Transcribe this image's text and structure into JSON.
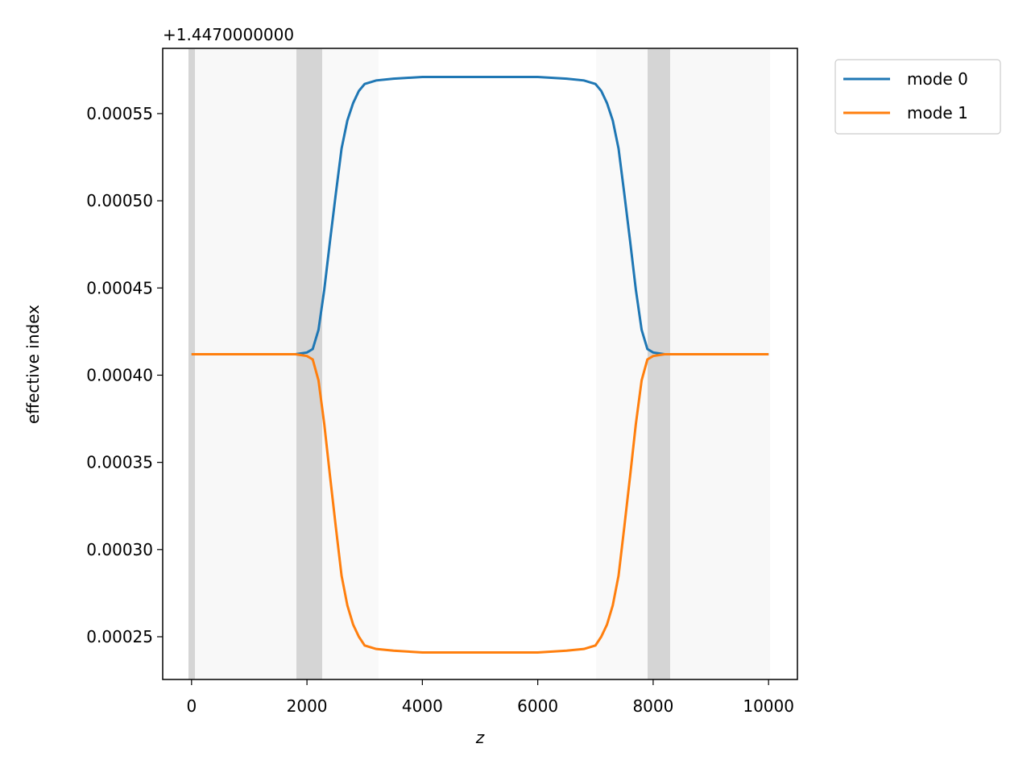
{
  "chart_data": {
    "type": "line",
    "xlabel": "z",
    "ylabel": "effective index",
    "offset_text": "+1.4470000000",
    "x": [
      0,
      500,
      1000,
      1500,
      1800,
      2000,
      2100,
      2200,
      2300,
      2400,
      2500,
      2600,
      2700,
      2800,
      2900,
      3000,
      3200,
      3500,
      4000,
      5000,
      6000,
      6500,
      6800,
      7000,
      7100,
      7200,
      7300,
      7400,
      7500,
      7600,
      7700,
      7800,
      7900,
      8000,
      8200,
      8500,
      9000,
      9500,
      10000
    ],
    "series": [
      {
        "name": "mode 0",
        "color": "#1f77b4",
        "values": [
          0.000412,
          0.000412,
          0.000412,
          0.000412,
          0.000412,
          0.000413,
          0.000415,
          0.000426,
          0.000449,
          0.000477,
          0.000504,
          0.00053,
          0.000546,
          0.000556,
          0.000563,
          0.000567,
          0.000569,
          0.00057,
          0.000571,
          0.000571,
          0.000571,
          0.00057,
          0.000569,
          0.000567,
          0.000563,
          0.000556,
          0.000546,
          0.00053,
          0.000504,
          0.000477,
          0.000449,
          0.000426,
          0.000415,
          0.000413,
          0.000412,
          0.000412,
          0.000412,
          0.000412,
          0.000412
        ]
      },
      {
        "name": "mode 1",
        "color": "#ff7f0e",
        "values": [
          0.000412,
          0.000412,
          0.000412,
          0.000412,
          0.000412,
          0.000411,
          0.000409,
          0.000397,
          0.000372,
          0.000342,
          0.000313,
          0.000285,
          0.000268,
          0.000257,
          0.00025,
          0.000245,
          0.000243,
          0.000242,
          0.000241,
          0.000241,
          0.000241,
          0.000242,
          0.000243,
          0.000245,
          0.00025,
          0.000257,
          0.000268,
          0.000285,
          0.000313,
          0.000342,
          0.000372,
          0.000397,
          0.000409,
          0.000411,
          0.000412,
          0.000412,
          0.000412,
          0.000412,
          0.000412
        ]
      }
    ],
    "xlim": [
      -500,
      10500
    ],
    "xticks": [
      0,
      2000,
      4000,
      6000,
      8000,
      10000
    ],
    "ylim": [
      0.0002255,
      0.0005874
    ],
    "yticks": [
      0.00025,
      {
        "value": 0.0003,
        "label": "0.00030"
      },
      0.00035,
      {
        "value": 0.0004,
        "label": "0.00040"
      },
      0.00045,
      {
        "value": 0.0005,
        "label": "0.00050"
      },
      0.00055
    ],
    "legend": "outside upper right"
  }
}
